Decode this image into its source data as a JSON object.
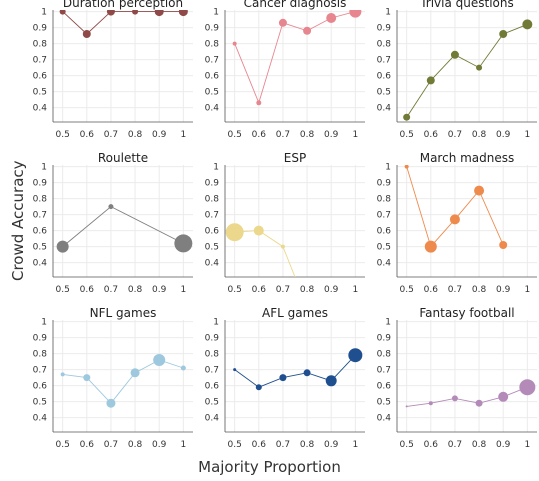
{
  "chart_data": {
    "type": "scatter",
    "xlabel": "Majority Proportion",
    "ylabel": "Crowd Accuracy",
    "xticks": [
      "0.5",
      "0.6",
      "0.7",
      "0.8",
      "0.9",
      "1"
    ],
    "yticks": [
      "0.4",
      "0.5",
      "0.6",
      "0.7",
      "0.8",
      "0.9",
      "1"
    ],
    "xlim": [
      0.46,
      1.04
    ],
    "ylim": [
      0.31,
      1.01
    ],
    "grid": true,
    "panels": [
      {
        "title": "Duration perception",
        "color": "#8f4a48",
        "points": [
          {
            "x": 0.5,
            "y": 1.0,
            "size": 3
          },
          {
            "x": 0.6,
            "y": 0.86,
            "size": 4
          },
          {
            "x": 0.7,
            "y": 1.0,
            "size": 4
          },
          {
            "x": 0.8,
            "y": 1.0,
            "size": 3
          },
          {
            "x": 0.9,
            "y": 1.0,
            "size": 4.5
          },
          {
            "x": 1.0,
            "y": 1.0,
            "size": 4.5
          }
        ]
      },
      {
        "title": "Cancer diagnosis",
        "color": "#e8868f",
        "points": [
          {
            "x": 0.5,
            "y": 0.8,
            "size": 2
          },
          {
            "x": 0.6,
            "y": 0.43,
            "size": 2.5
          },
          {
            "x": 0.7,
            "y": 0.93,
            "size": 4
          },
          {
            "x": 0.8,
            "y": 0.88,
            "size": 4
          },
          {
            "x": 0.9,
            "y": 0.96,
            "size": 5
          },
          {
            "x": 1.0,
            "y": 1.0,
            "size": 6
          }
        ]
      },
      {
        "title": "Trivia questions",
        "color": "#717a36",
        "points": [
          {
            "x": 0.5,
            "y": 0.34,
            "size": 3.5
          },
          {
            "x": 0.6,
            "y": 0.57,
            "size": 4
          },
          {
            "x": 0.7,
            "y": 0.73,
            "size": 4
          },
          {
            "x": 0.8,
            "y": 0.65,
            "size": 3
          },
          {
            "x": 0.9,
            "y": 0.86,
            "size": 4
          },
          {
            "x": 1.0,
            "y": 0.92,
            "size": 5
          }
        ]
      },
      {
        "title": "Roulette",
        "color": "#7f7f7f",
        "points": [
          {
            "x": 0.5,
            "y": 0.5,
            "size": 6
          },
          {
            "x": 0.7,
            "y": 0.75,
            "size": 2.5
          },
          {
            "x": 1.0,
            "y": 0.52,
            "size": 9
          }
        ]
      },
      {
        "title": "ESP",
        "color": "#ecd88c",
        "points": [
          {
            "x": 0.5,
            "y": 0.59,
            "size": 9
          },
          {
            "x": 0.6,
            "y": 0.6,
            "size": 5
          },
          {
            "x": 0.7,
            "y": 0.5,
            "size": 2
          },
          {
            "x": 0.75,
            "y": 0.31,
            "size": 0
          }
        ]
      },
      {
        "title": "March madness",
        "color": "#ef8a4d",
        "points": [
          {
            "x": 0.5,
            "y": 1.0,
            "size": 2
          },
          {
            "x": 0.6,
            "y": 0.5,
            "size": 6
          },
          {
            "x": 0.7,
            "y": 0.67,
            "size": 5
          },
          {
            "x": 0.8,
            "y": 0.85,
            "size": 5
          },
          {
            "x": 0.9,
            "y": 0.51,
            "size": 4
          }
        ]
      },
      {
        "title": "NFL games",
        "color": "#9ec8de",
        "points": [
          {
            "x": 0.5,
            "y": 0.67,
            "size": 2
          },
          {
            "x": 0.6,
            "y": 0.65,
            "size": 3.5
          },
          {
            "x": 0.7,
            "y": 0.49,
            "size": 4.5
          },
          {
            "x": 0.8,
            "y": 0.68,
            "size": 4.5
          },
          {
            "x": 0.9,
            "y": 0.76,
            "size": 6
          },
          {
            "x": 1.0,
            "y": 0.71,
            "size": 2.5
          }
        ]
      },
      {
        "title": "AFL games",
        "color": "#1f4f8f",
        "points": [
          {
            "x": 0.5,
            "y": 0.7,
            "size": 1.5
          },
          {
            "x": 0.6,
            "y": 0.59,
            "size": 3
          },
          {
            "x": 0.7,
            "y": 0.65,
            "size": 3.5
          },
          {
            "x": 0.8,
            "y": 0.68,
            "size": 3.5
          },
          {
            "x": 0.9,
            "y": 0.63,
            "size": 5.5
          },
          {
            "x": 1.0,
            "y": 0.79,
            "size": 7
          }
        ]
      },
      {
        "title": "Fantasy football",
        "color": "#b48ab9",
        "points": [
          {
            "x": 0.5,
            "y": 0.47,
            "size": 1
          },
          {
            "x": 0.6,
            "y": 0.49,
            "size": 2
          },
          {
            "x": 0.7,
            "y": 0.52,
            "size": 3
          },
          {
            "x": 0.8,
            "y": 0.49,
            "size": 3.5
          },
          {
            "x": 0.9,
            "y": 0.53,
            "size": 5
          },
          {
            "x": 1.0,
            "y": 0.59,
            "size": 8
          }
        ]
      }
    ]
  }
}
